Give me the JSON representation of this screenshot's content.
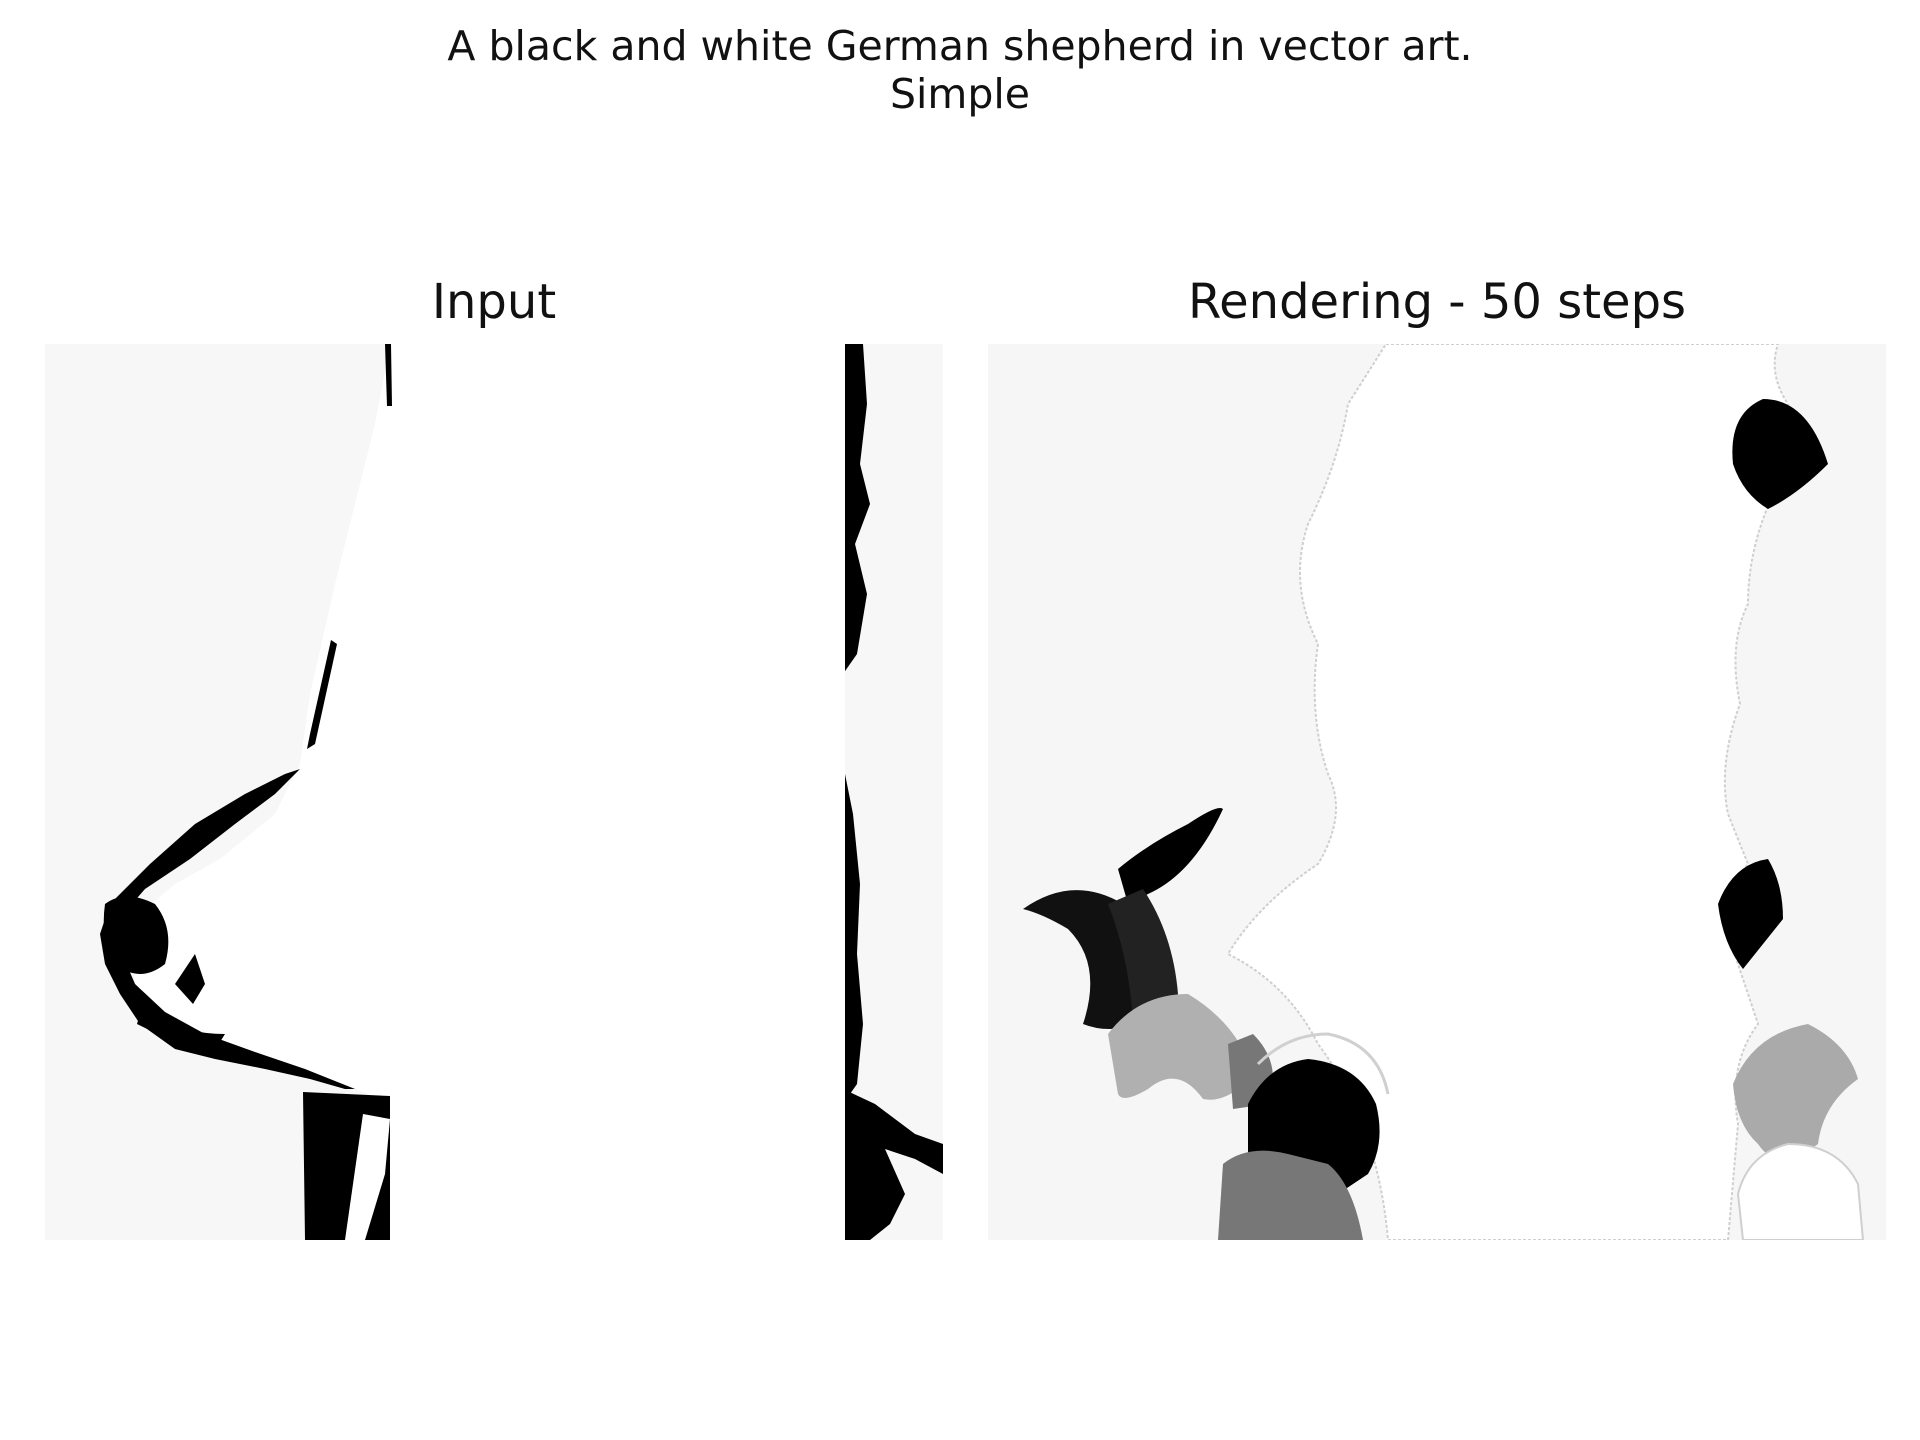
{
  "figure": {
    "title_line1": "A black and white German shepherd in vector art.",
    "title_line2": "Simple",
    "panels": [
      {
        "title": "Input",
        "image": "German shepherd line-art crop"
      },
      {
        "title": "Rendering - 50 steps",
        "image": "vector rendering of the German shepherd with black, grey and white shapes"
      }
    ],
    "colors": {
      "black": "#000000",
      "white": "#ffffff",
      "light_grey": "#f7f7f7",
      "mid_grey": "#b0b0b0",
      "dark_grey": "#777777"
    }
  }
}
